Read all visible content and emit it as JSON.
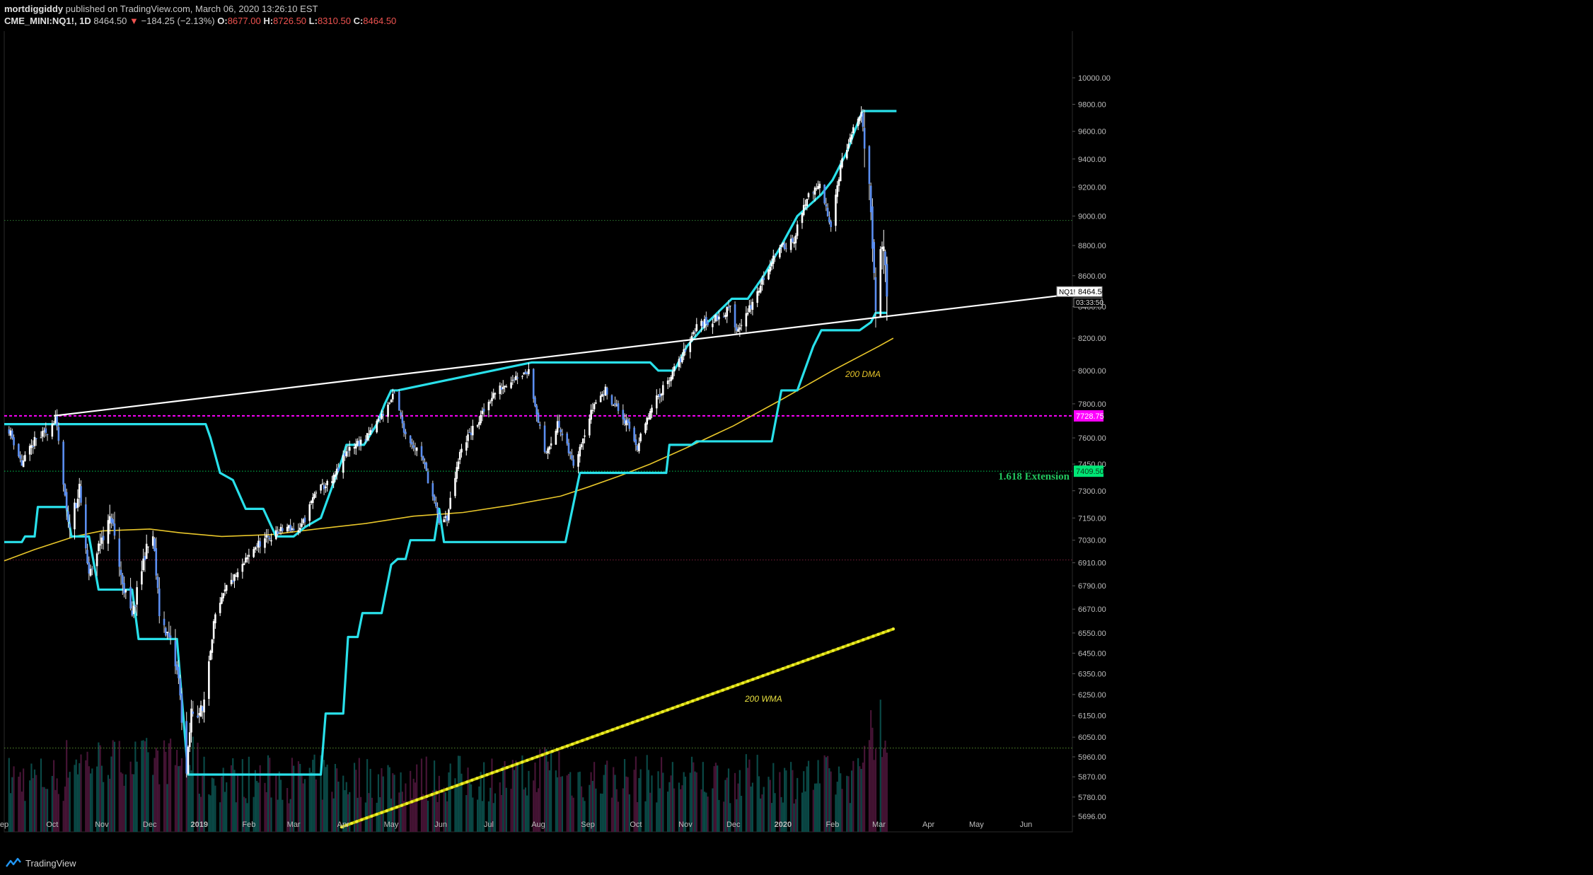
{
  "header": {
    "publisher": "mortdiggiddy",
    "published_text": "published on TradingView.com, March 06, 2020 13:26:10 EST",
    "symbol": "CME_MINI:NQ1!, 1D",
    "last": "8464.50",
    "change": "−184.25 (−2.13%)",
    "o_label": "O:",
    "o": "8677.00",
    "h_label": "H:",
    "h": "8726.50",
    "l_label": "L:",
    "l": "8310.50",
    "c_label": "C:",
    "c": "8464.50"
  },
  "footer": {
    "brand": "TradingView"
  },
  "chart_data": {
    "type": "candlestick",
    "symbol": "NQ1!",
    "interval": "1D",
    "x_range": [
      "2018-09-01",
      "2020-06-30"
    ],
    "ylim": [
      5620,
      10020
    ],
    "y_scale": "log",
    "y_ticks": [
      "10000.00",
      "9800.00",
      "9600.00",
      "9400.00",
      "9200.00",
      "9000.00",
      "8800.00",
      "8600.00",
      "8400.00",
      "8200.00",
      "8000.00",
      "7800.00",
      "7600.00",
      "7450.00",
      "7300.00",
      "7150.00",
      "7030.00",
      "6910.00",
      "6790.00",
      "6670.00",
      "6550.00",
      "6450.00",
      "6350.00",
      "6250.00",
      "6150.00",
      "6050.00",
      "5960.00",
      "5870.00",
      "5780.00",
      "5696.00"
    ],
    "x_ticks": [
      {
        "label": "ep",
        "date": "2018-09-01"
      },
      {
        "label": "Oct",
        "date": "2018-10-01"
      },
      {
        "label": "Nov",
        "date": "2018-11-01"
      },
      {
        "label": "Dec",
        "date": "2018-12-01"
      },
      {
        "label": "2019",
        "date": "2019-01-01"
      },
      {
        "label": "Feb",
        "date": "2019-02-01"
      },
      {
        "label": "Mar",
        "date": "2019-03-01"
      },
      {
        "label": "Apr",
        "date": "2019-04-01"
      },
      {
        "label": "May",
        "date": "2019-05-01"
      },
      {
        "label": "Jun",
        "date": "2019-06-01"
      },
      {
        "label": "Jul",
        "date": "2019-07-01"
      },
      {
        "label": "Aug",
        "date": "2019-08-01"
      },
      {
        "label": "Sep",
        "date": "2019-09-01"
      },
      {
        "label": "Oct",
        "date": "2019-10-01"
      },
      {
        "label": "Nov",
        "date": "2019-11-01"
      },
      {
        "label": "Dec",
        "date": "2019-12-01"
      },
      {
        "label": "2020",
        "date": "2020-01-01"
      },
      {
        "label": "Feb",
        "date": "2020-02-01"
      },
      {
        "label": "Mar",
        "date": "2020-03-01"
      },
      {
        "label": "Apr",
        "date": "2020-04-01"
      },
      {
        "label": "May",
        "date": "2020-05-01"
      },
      {
        "label": "Jun",
        "date": "2020-06-01"
      }
    ],
    "price_path": [
      [
        "2018-09-04",
        7650
      ],
      [
        "2018-09-12",
        7450
      ],
      [
        "2018-09-20",
        7580
      ],
      [
        "2018-09-28",
        7640
      ],
      [
        "2018-10-03",
        7720
      ],
      [
        "2018-10-11",
        7100
      ],
      [
        "2018-10-18",
        7300
      ],
      [
        "2018-10-24",
        6830
      ],
      [
        "2018-11-01",
        7050
      ],
      [
        "2018-11-07",
        7150
      ],
      [
        "2018-11-13",
        6840
      ],
      [
        "2018-11-20",
        6620
      ],
      [
        "2018-11-28",
        6960
      ],
      [
        "2018-12-03",
        7050
      ],
      [
        "2018-12-07",
        6650
      ],
      [
        "2018-12-14",
        6500
      ],
      [
        "2018-12-19",
        6320
      ],
      [
        "2018-12-24",
        5880
      ],
      [
        "2018-12-27",
        6170
      ],
      [
        "2019-01-03",
        6170
      ],
      [
        "2019-01-10",
        6600
      ],
      [
        "2019-01-18",
        6780
      ],
      [
        "2019-01-25",
        6850
      ],
      [
        "2019-02-05",
        7000
      ],
      [
        "2019-02-15",
        7050
      ],
      [
        "2019-02-25",
        7100
      ],
      [
        "2019-03-05",
        7080
      ],
      [
        "2019-03-15",
        7300
      ],
      [
        "2019-03-25",
        7350
      ],
      [
        "2019-04-05",
        7550
      ],
      [
        "2019-04-15",
        7590
      ],
      [
        "2019-04-25",
        7730
      ],
      [
        "2019-05-03",
        7850
      ],
      [
        "2019-05-10",
        7620
      ],
      [
        "2019-05-20",
        7500
      ],
      [
        "2019-05-31",
        7130
      ],
      [
        "2019-06-05",
        7150
      ],
      [
        "2019-06-14",
        7550
      ],
      [
        "2019-06-25",
        7700
      ],
      [
        "2019-07-03",
        7850
      ],
      [
        "2019-07-15",
        7950
      ],
      [
        "2019-07-26",
        8000
      ],
      [
        "2019-08-05",
        7500
      ],
      [
        "2019-08-13",
        7680
      ],
      [
        "2019-08-23",
        7450
      ],
      [
        "2019-09-05",
        7800
      ],
      [
        "2019-09-12",
        7880
      ],
      [
        "2019-09-24",
        7700
      ],
      [
        "2019-10-02",
        7550
      ],
      [
        "2019-10-10",
        7750
      ],
      [
        "2019-10-18",
        7900
      ],
      [
        "2019-10-28",
        8050
      ],
      [
        "2019-11-08",
        8280
      ],
      [
        "2019-11-20",
        8320
      ],
      [
        "2019-11-29",
        8390
      ],
      [
        "2019-12-03",
        8250
      ],
      [
        "2019-12-13",
        8420
      ],
      [
        "2019-12-27",
        8750
      ],
      [
        "2020-01-08",
        8850
      ],
      [
        "2020-01-17",
        9150
      ],
      [
        "2020-01-24",
        9200
      ],
      [
        "2020-01-31",
        8950
      ],
      [
        "2020-02-06",
        9350
      ],
      [
        "2020-02-14",
        9600
      ],
      [
        "2020-02-19",
        9720
      ],
      [
        "2020-02-24",
        9300
      ],
      [
        "2020-02-28",
        8300
      ],
      [
        "2020-03-02",
        8850
      ],
      [
        "2020-03-05",
        8650
      ],
      [
        "2020-03-06",
        8464.5
      ]
    ],
    "overlays": [
      {
        "kind": "trendline",
        "color": "#ffffff",
        "points": [
          [
            "2018-10-02",
            7728.75
          ],
          [
            "2020-06-30",
            8480
          ]
        ]
      },
      {
        "kind": "horizontal",
        "label": "7728.75",
        "color": "#ff00ff",
        "value": 7728.75,
        "style": "dashed"
      },
      {
        "kind": "horizontal",
        "label": "7409.50",
        "color": "#00c853",
        "value": 7409.5,
        "style": "dotted"
      },
      {
        "kind": "horizontal",
        "color": "#2e7d32",
        "value": 8970,
        "style": "dotted"
      },
      {
        "kind": "horizontal",
        "color": "#7b1f3a",
        "value": 6925,
        "style": "dotted"
      },
      {
        "kind": "horizontal",
        "color": "#558b2f",
        "value": 6000,
        "style": "dotted"
      }
    ],
    "annotations": {
      "extension": "1.618 Extension",
      "dma": "200 DMA",
      "wma": "200 WMA",
      "price_label_name": "NQ1!",
      "price_label_value": "8464.50",
      "countdown": "03:33:50",
      "magenta_tag": "7728.75",
      "green_tag": "7409.50"
    },
    "channel_lower": [
      [
        "2018-09-01",
        7020
      ],
      [
        "2018-09-12",
        7020
      ],
      [
        "2018-09-14",
        7050
      ],
      [
        "2018-09-20",
        7050
      ],
      [
        "2018-09-22",
        7210
      ],
      [
        "2018-10-10",
        7210
      ],
      [
        "2018-10-13",
        7050
      ],
      [
        "2018-10-24",
        7050
      ],
      [
        "2018-10-30",
        6770
      ],
      [
        "2018-11-20",
        6770
      ],
      [
        "2018-11-24",
        6520
      ],
      [
        "2018-12-18",
        6520
      ],
      [
        "2018-12-25",
        5880
      ],
      [
        "2019-03-18",
        5880
      ],
      [
        "2019-03-21",
        6160
      ],
      [
        "2019-04-01",
        6160
      ],
      [
        "2019-04-04",
        6530
      ],
      [
        "2019-04-10",
        6530
      ],
      [
        "2019-04-13",
        6650
      ],
      [
        "2019-04-25",
        6650
      ],
      [
        "2019-05-01",
        6900
      ],
      [
        "2019-05-05",
        6930
      ],
      [
        "2019-05-10",
        6930
      ],
      [
        "2019-05-13",
        7030
      ],
      [
        "2019-05-28",
        7030
      ],
      [
        "2019-05-31",
        7200
      ],
      [
        "2019-06-03",
        7020
      ],
      [
        "2019-08-18",
        7020
      ],
      [
        "2019-08-27",
        7400
      ],
      [
        "2019-10-20",
        7400
      ],
      [
        "2019-10-22",
        7560
      ],
      [
        "2019-11-05",
        7560
      ],
      [
        "2019-11-08",
        7580
      ],
      [
        "2019-12-25",
        7580
      ],
      [
        "2019-12-31",
        7880
      ],
      [
        "2020-01-10",
        7880
      ],
      [
        "2020-01-20",
        8150
      ],
      [
        "2020-01-25",
        8250
      ],
      [
        "2020-02-18",
        8250
      ],
      [
        "2020-02-25",
        8300
      ],
      [
        "2020-02-28",
        8360
      ],
      [
        "2020-03-06",
        8360
      ]
    ],
    "channel_upper": [
      [
        "2018-09-01",
        7680
      ],
      [
        "2018-10-05",
        7680
      ],
      [
        "2019-01-05",
        7680
      ],
      [
        "2019-01-08",
        7600
      ],
      [
        "2019-01-14",
        7400
      ],
      [
        "2019-01-22",
        7360
      ],
      [
        "2019-01-30",
        7200
      ],
      [
        "2019-02-10",
        7200
      ],
      [
        "2019-02-18",
        7050
      ],
      [
        "2019-03-01",
        7050
      ],
      [
        "2019-03-08",
        7100
      ],
      [
        "2019-03-18",
        7150
      ],
      [
        "2019-03-31",
        7470
      ],
      [
        "2019-04-03",
        7560
      ],
      [
        "2019-04-14",
        7560
      ],
      [
        "2019-04-22",
        7680
      ],
      [
        "2019-04-27",
        7800
      ],
      [
        "2019-05-01",
        7880
      ],
      [
        "2019-05-05",
        7880
      ],
      [
        "2019-07-28",
        8050
      ],
      [
        "2019-10-10",
        8050
      ],
      [
        "2019-10-15",
        8000
      ],
      [
        "2019-10-25",
        8000
      ],
      [
        "2019-11-02",
        8150
      ],
      [
        "2019-11-15",
        8300
      ],
      [
        "2019-11-30",
        8450
      ],
      [
        "2019-12-10",
        8450
      ],
      [
        "2019-12-20",
        8600
      ],
      [
        "2019-12-31",
        8800
      ],
      [
        "2020-01-10",
        9000
      ],
      [
        "2020-01-25",
        9150
      ],
      [
        "2020-02-01",
        9250
      ],
      [
        "2020-02-10",
        9450
      ],
      [
        "2020-02-18",
        9700
      ],
      [
        "2020-02-20",
        9750
      ],
      [
        "2020-03-12",
        9750
      ]
    ],
    "dma_200": [
      [
        "2018-09-01",
        6920
      ],
      [
        "2018-09-20",
        6980
      ],
      [
        "2018-10-15",
        7050
      ],
      [
        "2018-11-01",
        7080
      ],
      [
        "2018-12-01",
        7090
      ],
      [
        "2018-12-20",
        7070
      ],
      [
        "2019-01-15",
        7050
      ],
      [
        "2019-02-15",
        7060
      ],
      [
        "2019-03-15",
        7090
      ],
      [
        "2019-04-15",
        7120
      ],
      [
        "2019-05-15",
        7160
      ],
      [
        "2019-06-15",
        7180
      ],
      [
        "2019-07-15",
        7220
      ],
      [
        "2019-08-15",
        7270
      ],
      [
        "2019-09-01",
        7320
      ],
      [
        "2019-09-20",
        7380
      ],
      [
        "2019-10-10",
        7450
      ],
      [
        "2019-11-01",
        7540
      ],
      [
        "2019-12-01",
        7670
      ],
      [
        "2020-01-01",
        7830
      ],
      [
        "2020-02-01",
        8000
      ],
      [
        "2020-03-01",
        8150
      ],
      [
        "2020-03-10",
        8200
      ]
    ],
    "wma_200": [
      [
        "2019-03-31",
        5650
      ],
      [
        "2020-03-10",
        6570
      ]
    ],
    "volume_profile": "daily volume histogram (relative heights), bars colored teal for up days and maroon for down days"
  }
}
